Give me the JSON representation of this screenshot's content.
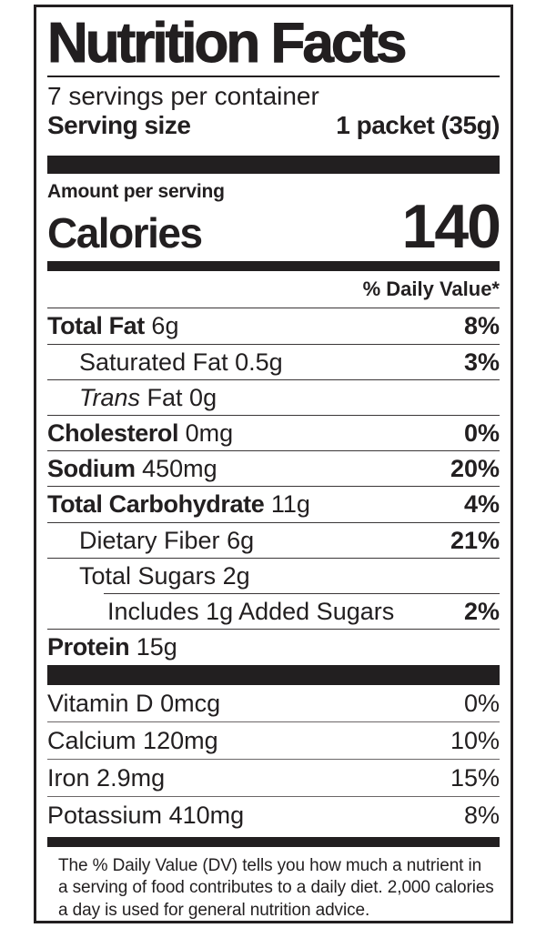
{
  "colors": {
    "ink": "#221f20",
    "background": "#ffffff"
  },
  "label": {
    "title": "Nutrition Facts",
    "servings_per_container": "7 servings per container",
    "serving_size": {
      "label": "Serving size",
      "value": "1 packet (35g)"
    },
    "amount_per_serving": "Amount per serving",
    "calories": {
      "label": "Calories",
      "value": "140"
    },
    "daily_value_header": "% Daily Value*",
    "nutrients": [
      {
        "name": "Total Fat",
        "amount": "6g",
        "dv": "8%"
      },
      {
        "name": "Saturated Fat",
        "amount": "0.5g",
        "dv": "3%"
      },
      {
        "name_italic": "Trans",
        "name": " Fat",
        "amount": "0g",
        "dv": ""
      },
      {
        "name": "Cholesterol",
        "amount": "0mg",
        "dv": "0%"
      },
      {
        "name": "Sodium",
        "amount": "450mg",
        "dv": "20%"
      },
      {
        "name": "Total Carbohydrate",
        "amount": "11g",
        "dv": "4%"
      },
      {
        "name": "Dietary Fiber",
        "amount": "6g",
        "dv": "21%"
      },
      {
        "name": "Total Sugars",
        "amount": "2g",
        "dv": ""
      },
      {
        "name": "Includes 1g Added Sugars",
        "amount": "",
        "dv": "2%"
      },
      {
        "name": "Protein",
        "amount": "15g",
        "dv": ""
      }
    ],
    "vitamins": [
      {
        "name": "Vitamin D",
        "amount": "0mcg",
        "dv": "0%"
      },
      {
        "name": "Calcium",
        "amount": "120mg",
        "dv": "10%"
      },
      {
        "name": "Iron",
        "amount": "2.9mg",
        "dv": "15%"
      },
      {
        "name": "Potassium",
        "amount": "410mg",
        "dv": "8%"
      }
    ],
    "footnote": "The % Daily Value (DV) tells you how much a nutrient in a serving of food contributes to a daily diet. 2,000 calories a day is used for general nutrition advice."
  }
}
